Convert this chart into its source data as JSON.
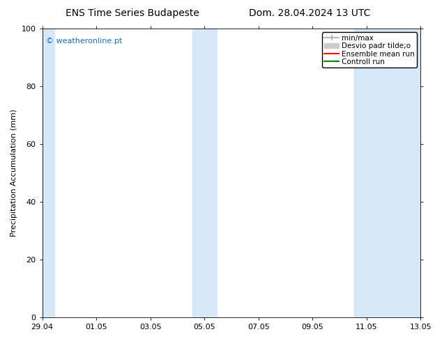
{
  "title_left": "ENS Time Series Budapeste",
  "title_right": "Dom. 28.04.2024 13 UTC",
  "ylabel": "Precipitation Accumulation (mm)",
  "ylim": [
    0,
    100
  ],
  "yticks": [
    0,
    20,
    40,
    60,
    80,
    100
  ],
  "xlim": [
    0,
    14
  ],
  "xtick_labels": [
    "29.04",
    "01.05",
    "03.05",
    "05.05",
    "07.05",
    "09.05",
    "11.05",
    "13.05"
  ],
  "xtick_positions": [
    0,
    2,
    4,
    6,
    8,
    10,
    12,
    14
  ],
  "shaded_bands": [
    [
      0.0,
      0.4
    ],
    [
      5.6,
      6.0
    ],
    [
      6.0,
      6.4
    ],
    [
      11.6,
      12.0
    ],
    [
      12.0,
      14.0
    ]
  ],
  "band_color": "#d6e8f7",
  "watermark_text": "© weatheronline.pt",
  "watermark_color": "#1a6cb5",
  "background_color": "#ffffff",
  "title_fontsize": 10,
  "label_fontsize": 8,
  "tick_fontsize": 8,
  "legend_fontsize": 7.5,
  "legend_label_min_max": "min/max",
  "legend_label_desvio": "Desvio padr tilde;o",
  "legend_label_ensemble": "Ensemble mean run",
  "legend_label_control": "Controll run",
  "legend_color_min_max": "#aaaaaa",
  "legend_color_desvio": "#cccccc",
  "legend_color_ensemble": "#ff0000",
  "legend_color_control": "#008000"
}
